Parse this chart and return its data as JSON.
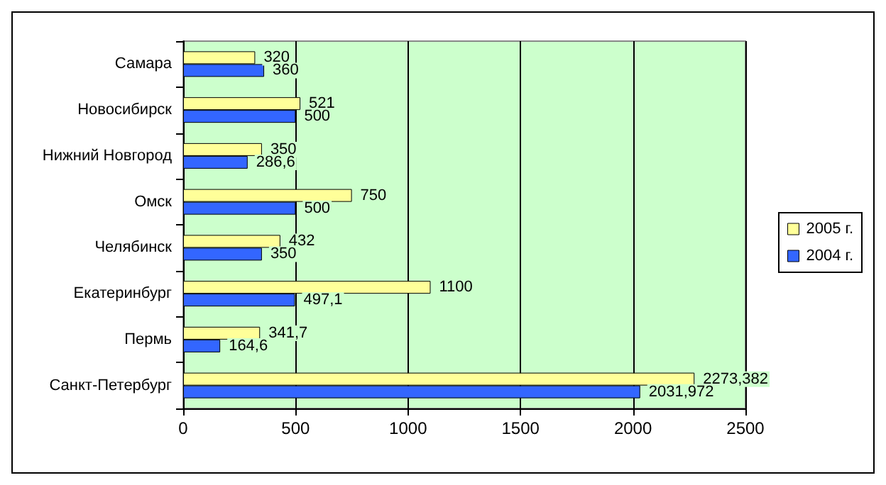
{
  "chart_data": {
    "type": "bar",
    "orientation": "horizontal",
    "categories": [
      "Самара",
      "Новосибирск",
      "Нижний Новгород",
      "Омск",
      "Челябинск",
      "Екатеринбург",
      "Пермь",
      "Санкт-Петербург"
    ],
    "series": [
      {
        "name": "2005 г.",
        "color": "#ffff99",
        "values": [
          320,
          521,
          350,
          750,
          432,
          1100,
          341.7,
          2273.382
        ],
        "value_labels": [
          "320",
          "521",
          "350",
          "750",
          "432",
          "1100",
          "341,7",
          "2273,382"
        ]
      },
      {
        "name": "2004 г.",
        "color": "#3366ff",
        "values": [
          360,
          500,
          286.6,
          500,
          350,
          497.1,
          164.6,
          2031.972
        ],
        "value_labels": [
          "360",
          "500",
          "286,6",
          "500",
          "350",
          "497,1",
          "164,6",
          "2031,972"
        ]
      }
    ],
    "xlim": [
      0,
      2500
    ],
    "xticks": [
      0,
      500,
      1000,
      1500,
      2000,
      2500
    ],
    "grid": "x",
    "legend": "right"
  }
}
